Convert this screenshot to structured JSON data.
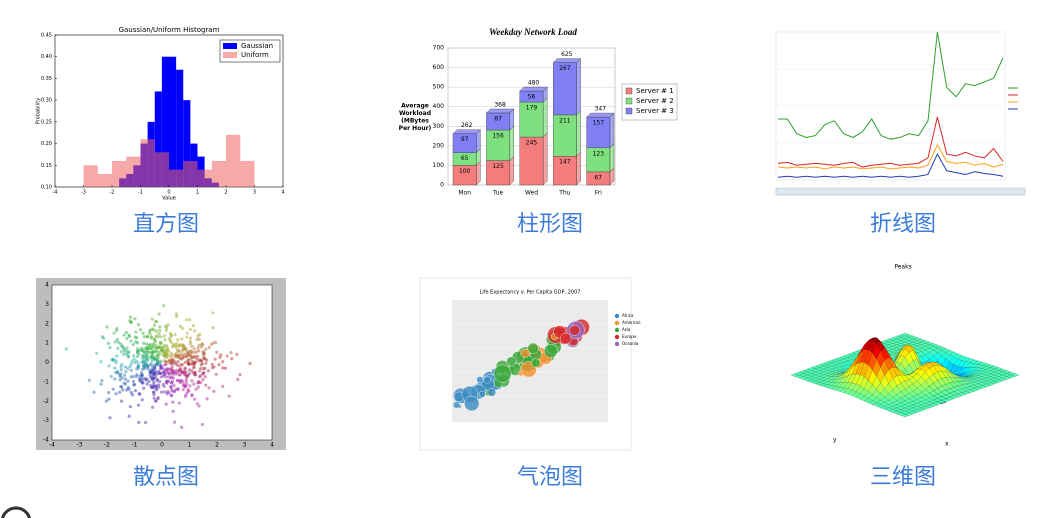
{
  "gallery": [
    {
      "label": "直方图",
      "thumbnail": {
        "title": "Gaussian/Uniform Histogram",
        "x_label": "Value",
        "y_label": "Probability",
        "xlim": [
          -4,
          4
        ],
        "xticks": [
          -4,
          -3,
          -2,
          -1,
          0,
          1,
          2,
          3,
          4
        ],
        "ylim": [
          0.1,
          0.45
        ],
        "yticks": [
          {
            "value": 0.1,
            "label": "0.10"
          },
          {
            "value": 0.15,
            "label": "0.15"
          },
          {
            "value": 0.2,
            "label": "0.20"
          },
          {
            "value": 0.25,
            "label": "0.25"
          },
          {
            "value": 0.3,
            "label": "0.30"
          },
          {
            "value": 0.35,
            "label": "0.35"
          },
          {
            "value": 0.4,
            "label": "0.40"
          },
          {
            "value": 0.45,
            "label": "0.45"
          }
        ],
        "series": [
          {
            "name": "Gaussian",
            "color": "#0000ff",
            "bins": [
              -1.75,
              -1.5,
              -1.25,
              -1,
              -0.75,
              -0.5,
              -0.25,
              0,
              0.25,
              0.5,
              0.75,
              1,
              1.25,
              1.5,
              1.75
            ],
            "values": [
              0.12,
              0.13,
              0.15,
              0.2,
              0.25,
              0.32,
              0.4,
              0.4,
              0.37,
              0.3,
              0.2,
              0.17,
              0.12,
              0.11
            ]
          },
          {
            "name": "Uniform",
            "color": "#f06060",
            "bins": [
              -3,
              -2.5,
              -2,
              -1.5,
              -1,
              -0.5,
              0,
              0.5,
              1,
              1.5,
              2,
              2.5,
              3
            ],
            "values": [
              0.15,
              0.13,
              0.16,
              0.17,
              0.21,
              0.18,
              0.14,
              0.16,
              0.14,
              0.16,
              0.22,
              0.16
            ]
          }
        ]
      }
    },
    {
      "label": "柱形图",
      "thumbnail": {
        "title": "Weekday Network Load",
        "y_label": [
          "Average",
          "Workload",
          "(MBytes",
          "Per Hour)"
        ],
        "categories": [
          "Mon",
          "Tue",
          "Wed",
          "Thu",
          "Fri"
        ],
        "ylim": [
          0,
          700
        ],
        "yticks": [
          0,
          100,
          200,
          300,
          400,
          500,
          600,
          700
        ],
        "series": [
          {
            "name": "Server # 1",
            "color": "#f47c7c",
            "values": [
              100,
              125,
              245,
              147,
              67
            ]
          },
          {
            "name": "Server # 2",
            "color": "#7fe07f",
            "values": [
              65,
              156,
              179,
              211,
              123
            ]
          },
          {
            "name": "Server # 3",
            "color": "#8080f4",
            "values": [
              97,
              87,
              56,
              267,
              157
            ]
          }
        ],
        "totals": [
          262,
          368,
          480,
          625,
          347
        ]
      }
    },
    {
      "label": "折线图",
      "thumbnail": {
        "ylim": [
          0,
          8000
        ],
        "series": [
          {
            "color": "#2ca02c",
            "values": [
              3300,
              3300,
              2500,
              2300,
              2400,
              3000,
              3200,
              2500,
              2300,
              2600,
              3300,
              2400,
              2200,
              2300,
              2500,
              2400,
              3200,
              8000,
              5000,
              4500,
              5200,
              5100,
              5300,
              5500,
              6600
            ]
          },
          {
            "color": "#d62728",
            "values": [
              900,
              950,
              800,
              850,
              900,
              850,
              800,
              900,
              950,
              700,
              800,
              850,
              900,
              800,
              850,
              900,
              1200,
              3400,
              1400,
              1300,
              1500,
              1300,
              1200,
              1700,
              1000
            ]
          },
          {
            "color": "#ff9f1c",
            "values": [
              700,
              650,
              700,
              650,
              700,
              600,
              700,
              650,
              700,
              600,
              650,
              700,
              600,
              650,
              700,
              650,
              800,
              1900,
              1000,
              900,
              950,
              800,
              900,
              700,
              850
            ]
          },
          {
            "color": "#1f3fb4",
            "values": [
              150,
              200,
              150,
              200,
              150,
              200,
              150,
              200,
              150,
              200,
              150,
              200,
              150,
              200,
              150,
              200,
              300,
              1400,
              500,
              400,
              300,
              450,
              350,
              300,
              200
            ]
          }
        ]
      }
    },
    {
      "label": "散点图",
      "thumbnail": {
        "xlim": [
          -4,
          4
        ],
        "xticks": [
          -4,
          -3,
          -2,
          -1,
          0,
          1,
          2,
          3,
          4
        ],
        "ylim": [
          -4,
          4
        ],
        "yticks": [
          -4,
          -3,
          -2,
          -1,
          0,
          1,
          2,
          3,
          4
        ]
      }
    },
    {
      "label": "气泡图",
      "thumbnail": {
        "title": "Life Expectancy v. Per Capita GDP, 2007",
        "legend": [
          {
            "name": "Africa",
            "color": "#3b8bc2"
          },
          {
            "name": "Americas",
            "color": "#f28e2b"
          },
          {
            "name": "Asia",
            "color": "#3aa63a"
          },
          {
            "name": "Europe",
            "color": "#d62728"
          },
          {
            "name": "Oceania",
            "color": "#9467bd"
          }
        ]
      }
    },
    {
      "label": "三维图",
      "thumbnail": {
        "title": "Peaks",
        "x_label": "x",
        "y_label": "y"
      }
    }
  ]
}
